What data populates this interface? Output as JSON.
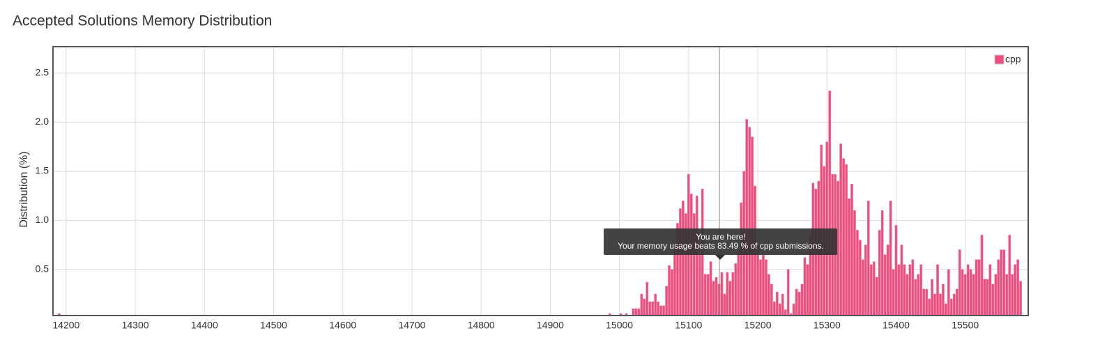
{
  "chart_data": {
    "type": "bar",
    "title": "Accepted Solutions Memory Distribution",
    "y_label": "Distribution (%)",
    "annotation": {
      "title": "You are here!",
      "text": "Your memory usage beats 83.49 % of cpp submissions."
    },
    "legend": "top-right",
    "grid": true,
    "xlim": [
      14181,
      15591
    ],
    "ylim": [
      0.03,
      2.77
    ],
    "xticks": [
      14200,
      14300,
      14400,
      14500,
      14600,
      14700,
      14800,
      14900,
      15000,
      15100,
      15200,
      15300,
      15400,
      15500
    ],
    "yticks": [
      {
        "value": 0.5,
        "label": "0.5"
      },
      {
        "value": 1,
        "label": "1.0"
      },
      {
        "value": 1.5,
        "label": "1.5"
      },
      {
        "value": 2,
        "label": "2.0"
      },
      {
        "value": 2.5,
        "label": "2.5"
      }
    ],
    "series": [
      {
        "name": "cpp",
        "color": "#ec4d7f",
        "x": [
          14190,
          14986,
          15002,
          15010,
          15020,
          15024,
          15028,
          15032,
          15036,
          15040,
          15044,
          15048,
          15052,
          15056,
          15060,
          15064,
          15068,
          15072,
          15076,
          15080,
          15084,
          15088,
          15092,
          15096,
          15100,
          15104,
          15108,
          15112,
          15116,
          15120,
          15124,
          15128,
          15132,
          15136,
          15140,
          15144,
          15148,
          15152,
          15156,
          15160,
          15164,
          15168,
          15172,
          15176,
          15180,
          15184,
          15188,
          15192,
          15196,
          15200,
          15204,
          15208,
          15212,
          15216,
          15220,
          15224,
          15228,
          15232,
          15236,
          15240,
          15244,
          15248,
          15252,
          15256,
          15260,
          15264,
          15268,
          15272,
          15276,
          15280,
          15284,
          15288,
          15292,
          15296,
          15300,
          15304,
          15308,
          15312,
          15316,
          15320,
          15324,
          15328,
          15332,
          15336,
          15340,
          15344,
          15348,
          15352,
          15356,
          15360,
          15364,
          15368,
          15372,
          15376,
          15380,
          15384,
          15388,
          15392,
          15396,
          15400,
          15404,
          15408,
          15412,
          15416,
          15420,
          15424,
          15428,
          15432,
          15436,
          15440,
          15444,
          15448,
          15452,
          15456,
          15460,
          15464,
          15468,
          15472,
          15476,
          15480,
          15484,
          15488,
          15492,
          15496,
          15500,
          15504,
          15508,
          15512,
          15516,
          15520,
          15524,
          15528,
          15532,
          15536,
          15540,
          15544,
          15548,
          15552,
          15556,
          15560,
          15564,
          15568,
          15572,
          15576,
          15580
        ],
        "values": [
          0.05,
          0.05,
          0.05,
          0.05,
          0.1,
          0.1,
          0.1,
          0.25,
          0.2,
          0.37,
          0.17,
          0.17,
          0.25,
          0.17,
          0.13,
          0.13,
          0.33,
          0.54,
          0.5,
          0.75,
          0.97,
          1.12,
          1.2,
          1.07,
          1.47,
          1.27,
          1.07,
          1.25,
          0.65,
          1.32,
          0.45,
          0.45,
          0.58,
          0.38,
          0.42,
          0.35,
          0.47,
          0.25,
          0.47,
          0.38,
          0.47,
          0.56,
          0.67,
          1.18,
          1.5,
          2.03,
          1.95,
          1.85,
          1.35,
          0.75,
          0.6,
          0.65,
          0.6,
          0.45,
          0.35,
          0.17,
          0.27,
          0.15,
          0.25,
          0.09,
          0.5,
          0.05,
          0.15,
          0.3,
          0.27,
          0.35,
          0.62,
          0.55,
          0.85,
          1.38,
          1.32,
          1.4,
          1.77,
          1.55,
          1.8,
          2.32,
          1.47,
          1.47,
          1.4,
          1.78,
          1.63,
          1.57,
          1.22,
          1.37,
          1.1,
          0.9,
          0.8,
          0.6,
          0.75,
          1.2,
          0.55,
          0.58,
          0.42,
          0.9,
          1.1,
          0.65,
          0.75,
          1.2,
          0.5,
          0.95,
          0.55,
          0.75,
          0.55,
          0.45,
          0.55,
          0.6,
          0.4,
          0.45,
          0.55,
          0.3,
          0.3,
          0.2,
          0.4,
          0.25,
          0.55,
          0.25,
          0.35,
          0.15,
          0.5,
          0.2,
          0.25,
          0.3,
          0.7,
          0.5,
          0.45,
          0.55,
          0.5,
          0.45,
          0.6,
          0.6,
          0.85,
          0.4,
          0.4,
          0.55,
          0.35,
          0.45,
          0.6,
          0.7,
          0.7,
          0.45,
          0.85,
          0.45,
          0.55,
          0.6,
          0.38
        ]
      }
    ]
  }
}
